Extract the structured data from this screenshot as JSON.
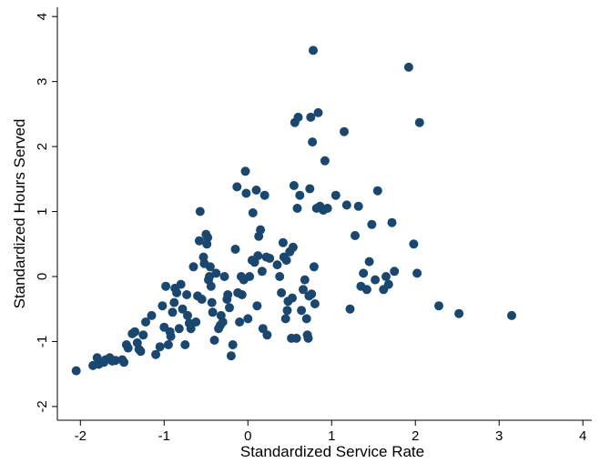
{
  "chart_data": {
    "type": "scatter",
    "xlabel": "Standardized Service Rate",
    "ylabel": "Standardized Hours Served",
    "xlim": [
      -2.2,
      4.0
    ],
    "ylim": [
      -2.2,
      4.2
    ],
    "xticks": [
      -2,
      -1,
      0,
      1,
      2,
      3,
      4
    ],
    "yticks": [
      -2,
      -1,
      0,
      1,
      2,
      3,
      4
    ],
    "grid": false,
    "marker_color": "#1a476f",
    "series": [
      {
        "points": [
          [
            -2.05,
            -1.45
          ],
          [
            -1.85,
            -1.37
          ],
          [
            -1.8,
            -1.25
          ],
          [
            -1.78,
            -1.35
          ],
          [
            -1.72,
            -1.32
          ],
          [
            -1.7,
            -1.28
          ],
          [
            -1.65,
            -1.25
          ],
          [
            -1.62,
            -1.3
          ],
          [
            -1.58,
            -1.29
          ],
          [
            -1.5,
            -1.28
          ],
          [
            -1.48,
            -1.32
          ],
          [
            -1.45,
            -1.05
          ],
          [
            -1.43,
            -1.1
          ],
          [
            -1.38,
            -0.88
          ],
          [
            -1.35,
            -0.85
          ],
          [
            -1.32,
            -1.02
          ],
          [
            -1.3,
            -1.12
          ],
          [
            -1.28,
            -1.15
          ],
          [
            -1.25,
            -0.9
          ],
          [
            -1.22,
            -0.7
          ],
          [
            -1.15,
            -0.6
          ],
          [
            -1.1,
            -1.2
          ],
          [
            -1.05,
            -1.08
          ],
          [
            -1.02,
            -0.45
          ],
          [
            -1.0,
            -0.78
          ],
          [
            -0.98,
            -0.15
          ],
          [
            -0.95,
            -1.05
          ],
          [
            -0.93,
            -0.85
          ],
          [
            -0.92,
            -0.92
          ],
          [
            -0.9,
            -0.55
          ],
          [
            -0.88,
            -0.4
          ],
          [
            -0.87,
            -0.18
          ],
          [
            -0.85,
            -0.25
          ],
          [
            -0.82,
            -0.8
          ],
          [
            -0.8,
            -0.12
          ],
          [
            -0.78,
            -0.5
          ],
          [
            -0.75,
            -1.05
          ],
          [
            -0.73,
            -0.28
          ],
          [
            -0.72,
            -0.6
          ],
          [
            -0.7,
            -0.72
          ],
          [
            -0.68,
            -0.8
          ],
          [
            -0.65,
            0.15
          ],
          [
            -0.62,
            -0.7
          ],
          [
            -0.6,
            -0.3
          ],
          [
            -0.58,
            0.55
          ],
          [
            -0.57,
            1.0
          ],
          [
            -0.55,
            -0.35
          ],
          [
            -0.53,
            0.3
          ],
          [
            -0.52,
            0.2
          ],
          [
            -0.5,
            0.65
          ],
          [
            -0.49,
            0.5
          ],
          [
            -0.48,
            0.6
          ],
          [
            -0.47,
            -0.05
          ],
          [
            -0.46,
            0.0
          ],
          [
            -0.45,
            0.15
          ],
          [
            -0.44,
            -0.15
          ],
          [
            -0.43,
            -0.4
          ],
          [
            -0.42,
            -0.55
          ],
          [
            -0.4,
            -0.98
          ],
          [
            -0.38,
            0.05
          ],
          [
            -0.35,
            -0.8
          ],
          [
            -0.33,
            -0.75
          ],
          [
            -0.32,
            -0.6
          ],
          [
            -0.3,
            -0.7
          ],
          [
            -0.28,
            0.0
          ],
          [
            -0.25,
            -0.35
          ],
          [
            -0.24,
            -0.28
          ],
          [
            -0.22,
            -0.48
          ],
          [
            -0.2,
            -1.22
          ],
          [
            -0.18,
            -1.05
          ],
          [
            -0.15,
            0.42
          ],
          [
            -0.13,
            1.38
          ],
          [
            -0.12,
            -0.25
          ],
          [
            -0.1,
            -0.7
          ],
          [
            -0.08,
            0.0
          ],
          [
            -0.07,
            -0.28
          ],
          [
            -0.05,
            -0.05
          ],
          [
            -0.03,
            1.62
          ],
          [
            -0.02,
            1.28
          ],
          [
            0.0,
            -0.65
          ],
          [
            0.02,
            0.0
          ],
          [
            0.05,
            0.25
          ],
          [
            0.06,
            0.98
          ],
          [
            0.08,
            0.22
          ],
          [
            0.1,
            1.33
          ],
          [
            0.11,
            -0.45
          ],
          [
            0.12,
            0.32
          ],
          [
            0.13,
            0.62
          ],
          [
            0.15,
            0.72
          ],
          [
            0.17,
            0.08
          ],
          [
            0.18,
            -0.8
          ],
          [
            0.2,
            1.25
          ],
          [
            0.22,
            0.3
          ],
          [
            0.23,
            -0.9
          ],
          [
            0.26,
            0.28
          ],
          [
            0.35,
            0.18
          ],
          [
            0.38,
            0.0
          ],
          [
            0.4,
            -0.25
          ],
          [
            0.42,
            0.52
          ],
          [
            0.43,
            0.3
          ],
          [
            0.45,
            -0.65
          ],
          [
            0.46,
            0.25
          ],
          [
            0.47,
            -0.52
          ],
          [
            0.48,
            -0.38
          ],
          [
            0.5,
            0.38
          ],
          [
            0.52,
            -0.95
          ],
          [
            0.53,
            -0.33
          ],
          [
            0.54,
            0.45
          ],
          [
            0.55,
            1.4
          ],
          [
            0.56,
            2.37
          ],
          [
            0.58,
            -0.95
          ],
          [
            0.59,
            1.05
          ],
          [
            0.6,
            2.45
          ],
          [
            0.62,
            1.25
          ],
          [
            0.64,
            -0.52
          ],
          [
            0.66,
            -0.2
          ],
          [
            0.68,
            -0.05
          ],
          [
            0.7,
            -0.65
          ],
          [
            0.71,
            -0.9
          ],
          [
            0.72,
            -0.95
          ],
          [
            0.73,
            -0.3
          ],
          [
            0.74,
            1.35
          ],
          [
            0.75,
            2.45
          ],
          [
            0.76,
            -0.27
          ],
          [
            0.77,
            2.07
          ],
          [
            0.78,
            3.48
          ],
          [
            0.79,
            0.15
          ],
          [
            0.8,
            -0.42
          ],
          [
            0.82,
            1.05
          ],
          [
            0.84,
            2.52
          ],
          [
            0.86,
            1.08
          ],
          [
            0.9,
            1.02
          ],
          [
            0.92,
            1.78
          ],
          [
            0.95,
            1.05
          ],
          [
            1.05,
            1.25
          ],
          [
            1.15,
            2.23
          ],
          [
            1.18,
            1.1
          ],
          [
            1.22,
            -0.5
          ],
          [
            1.28,
            0.63
          ],
          [
            1.32,
            1.08
          ],
          [
            1.35,
            -0.15
          ],
          [
            1.38,
            0.05
          ],
          [
            1.42,
            -0.2
          ],
          [
            1.45,
            0.23
          ],
          [
            1.48,
            0.8
          ],
          [
            1.52,
            -0.05
          ],
          [
            1.55,
            1.32
          ],
          [
            1.62,
            -0.2
          ],
          [
            1.65,
            0.0
          ],
          [
            1.68,
            -0.12
          ],
          [
            1.72,
            0.83
          ],
          [
            1.75,
            0.08
          ],
          [
            1.92,
            3.22
          ],
          [
            1.98,
            0.5
          ],
          [
            2.02,
            0.05
          ],
          [
            2.05,
            2.37
          ],
          [
            2.28,
            -0.45
          ],
          [
            2.52,
            -0.57
          ],
          [
            3.15,
            -0.6
          ]
        ]
      }
    ]
  }
}
